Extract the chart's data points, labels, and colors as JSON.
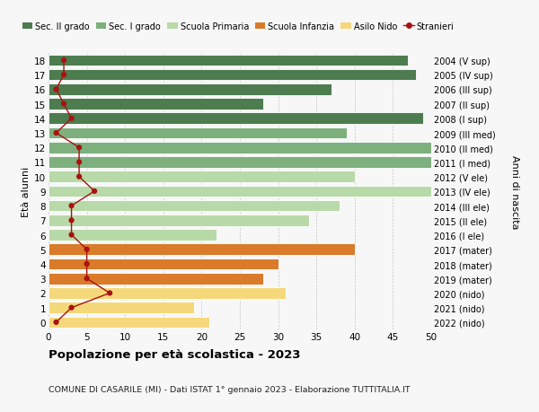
{
  "ages": [
    18,
    17,
    16,
    15,
    14,
    13,
    12,
    11,
    10,
    9,
    8,
    7,
    6,
    5,
    4,
    3,
    2,
    1,
    0
  ],
  "years": [
    "2004 (V sup)",
    "2005 (IV sup)",
    "2006 (III sup)",
    "2007 (II sup)",
    "2008 (I sup)",
    "2009 (III med)",
    "2010 (II med)",
    "2011 (I med)",
    "2012 (V ele)",
    "2013 (IV ele)",
    "2014 (III ele)",
    "2015 (II ele)",
    "2016 (I ele)",
    "2017 (mater)",
    "2018 (mater)",
    "2019 (mater)",
    "2020 (nido)",
    "2021 (nido)",
    "2022 (nido)"
  ],
  "bar_values": [
    47,
    48,
    37,
    28,
    49,
    39,
    50,
    50,
    40,
    50,
    38,
    34,
    22,
    40,
    30,
    28,
    31,
    19,
    21
  ],
  "bar_colors": [
    "#4d7c4f",
    "#4d7c4f",
    "#4d7c4f",
    "#4d7c4f",
    "#4d7c4f",
    "#7db07d",
    "#7db07d",
    "#7db07d",
    "#b8d9a8",
    "#b8d9a8",
    "#b8d9a8",
    "#b8d9a8",
    "#b8d9a8",
    "#d97b2a",
    "#d97b2a",
    "#d97b2a",
    "#f5d87a",
    "#f5d87a",
    "#f5d87a"
  ],
  "stranieri": [
    2,
    2,
    1,
    2,
    3,
    1,
    4,
    4,
    4,
    6,
    3,
    3,
    3,
    5,
    5,
    5,
    8,
    3,
    1
  ],
  "stranieri_color": "#aa1111",
  "ylabel_left": "Età alunni",
  "ylabel_right": "Anni di nascita",
  "xlim": [
    0,
    50
  ],
  "xticks": [
    0,
    5,
    10,
    15,
    20,
    25,
    30,
    35,
    40,
    45,
    50
  ],
  "title": "Popolazione per età scolastica - 2023",
  "subtitle": "COMUNE DI CASARILE (MI) - Dati ISTAT 1° gennaio 2023 - Elaborazione TUTTITALIA.IT",
  "legend_labels": [
    "Sec. II grado",
    "Sec. I grado",
    "Scuola Primaria",
    "Scuola Infanzia",
    "Asilo Nido",
    "Stranieri"
  ],
  "legend_colors": [
    "#4d7c4f",
    "#7db07d",
    "#b8d9a8",
    "#d97b2a",
    "#f5d87a",
    "#aa1111"
  ],
  "bg_color": "#f7f7f7",
  "bar_height": 0.78
}
